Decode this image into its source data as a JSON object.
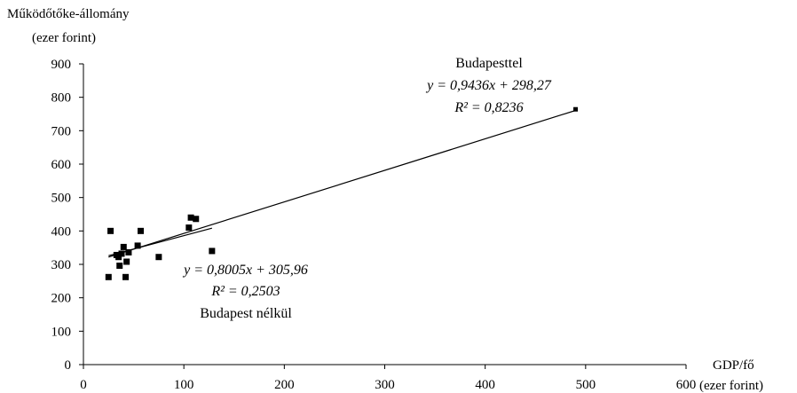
{
  "chart_data": {
    "type": "scatter",
    "title": "",
    "ylabel": [
      "Működőtőke-állomány",
      "(ezer forint)"
    ],
    "xlabel": [
      "GDP/fő",
      "(ezer forint)"
    ],
    "xlim": [
      0,
      600
    ],
    "ylim": [
      0,
      900
    ],
    "xticks": [
      0,
      100,
      200,
      300,
      400,
      500,
      600
    ],
    "yticks": [
      0,
      100,
      200,
      300,
      400,
      500,
      600,
      700,
      800,
      900
    ],
    "grid": false,
    "points": [
      {
        "x": 25,
        "y": 262
      },
      {
        "x": 27,
        "y": 400
      },
      {
        "x": 33,
        "y": 328
      },
      {
        "x": 35,
        "y": 322
      },
      {
        "x": 36,
        "y": 296
      },
      {
        "x": 38,
        "y": 332
      },
      {
        "x": 40,
        "y": 352
      },
      {
        "x": 42,
        "y": 262
      },
      {
        "x": 43,
        "y": 308
      },
      {
        "x": 45,
        "y": 336
      },
      {
        "x": 54,
        "y": 356
      },
      {
        "x": 57,
        "y": 400
      },
      {
        "x": 75,
        "y": 322
      },
      {
        "x": 105,
        "y": 410
      },
      {
        "x": 107,
        "y": 440
      },
      {
        "x": 112,
        "y": 436
      },
      {
        "x": 128,
        "y": 340
      },
      {
        "x": 490,
        "y": 764
      }
    ],
    "trendlines": [
      {
        "slope": 0.9436,
        "intercept": 298.27,
        "x_range": [
          25,
          490
        ],
        "label_lines": [
          "Budapesttel",
          "y = 0,9436x + 298,27",
          "R² = 0,8236"
        ]
      },
      {
        "slope": 0.8005,
        "intercept": 305.96,
        "x_range": [
          25,
          128
        ],
        "label_lines": [
          "y = 0,8005x + 305,96",
          "R² = 0,2503",
          "Budapest nélkül"
        ]
      }
    ]
  }
}
